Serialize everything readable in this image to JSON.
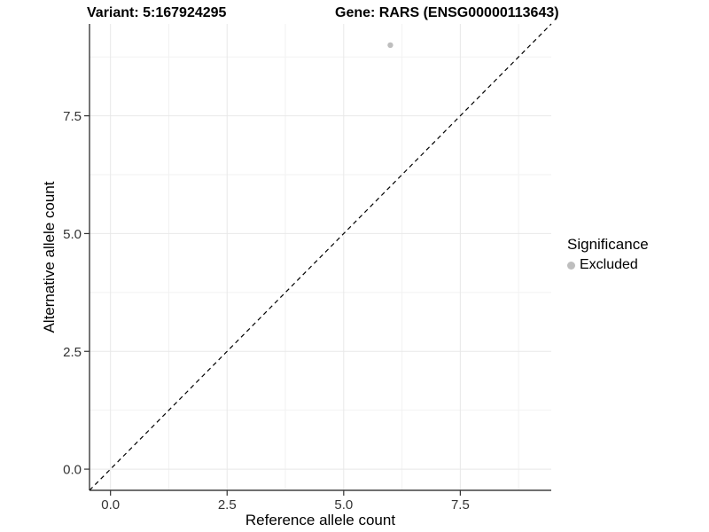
{
  "header": {
    "variant_title": "Variant: 5:167924295",
    "gene_title": "Gene: RARS (ENSG00000113643)"
  },
  "chart_data": {
    "type": "scatter",
    "xlabel": "Reference allele count",
    "ylabel": "Alternative allele count",
    "xlim": [
      -0.45,
      9.45
    ],
    "ylim": [
      -0.45,
      9.45
    ],
    "x_ticks": {
      "values": [
        0,
        2.5,
        5,
        7.5
      ],
      "labels": [
        "0.0",
        "2.5",
        "5.0",
        "7.5"
      ]
    },
    "y_ticks": {
      "values": [
        0,
        2.5,
        5,
        7.5
      ],
      "labels": [
        "0.0",
        "2.5",
        "5.0",
        "7.5"
      ]
    },
    "x_minor": [
      1.25,
      3.75,
      6.25,
      8.75
    ],
    "y_minor": [
      1.25,
      3.75,
      6.25,
      8.75
    ],
    "grid": true,
    "reference_line": {
      "style": "dashed",
      "from": [
        -0.45,
        -0.45
      ],
      "to": [
        9.45,
        9.45
      ],
      "color": "#000000"
    },
    "series": [
      {
        "name": "Excluded",
        "color": "#bebebe",
        "points": [
          {
            "x": 6,
            "y": 9
          }
        ]
      }
    ],
    "legend": {
      "title": "Significance",
      "position": "right",
      "entries": [
        {
          "label": "Excluded",
          "color": "#bebebe"
        }
      ]
    },
    "colors": {
      "grid_major": "#e8e8e8",
      "grid_minor": "#f2f2f2",
      "axis_line": "#1a1a1a",
      "tick_mark": "#333333",
      "tick_text": "#333333"
    }
  }
}
